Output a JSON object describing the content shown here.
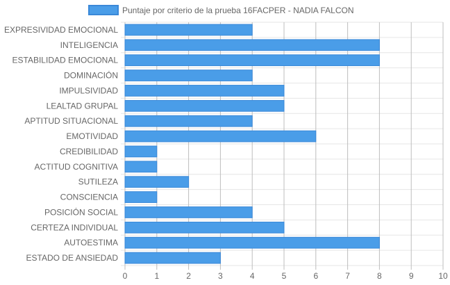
{
  "chart_data": {
    "type": "bar",
    "orientation": "horizontal",
    "title": "",
    "xlabel": "",
    "ylabel": "",
    "legend": {
      "position": "top",
      "entries": [
        "Puntaje por criterio de la prueba 16FACPER - NADIA FALCON"
      ]
    },
    "series": [
      {
        "name": "Puntaje por criterio de la prueba 16FACPER - NADIA FALCON",
        "values": [
          4,
          8,
          8,
          4,
          5,
          5,
          4,
          6,
          1,
          1,
          2,
          1,
          4,
          5,
          8,
          3
        ]
      }
    ],
    "categories": [
      "EXPRESIVIDAD EMOCIONAL",
      "INTELIGENCIA",
      "ESTABILIDAD EMOCIONAL",
      "DOMINACIÓN",
      "IMPULSIVIDAD",
      "LEALTAD GRUPAL",
      "APTITUD SITUACIONAL",
      "EMOTIVIDAD",
      "CREDIBILIDAD",
      "ACTITUD COGNITIVA",
      "SUTILEZA",
      "CONSCIENCIA",
      "POSICIÓN SOCIAL",
      "CERTEZA INDIVIDUAL",
      "AUTOESTIMA",
      "ESTADO DE ANSIEDAD"
    ],
    "xlim": [
      0,
      10
    ],
    "x_ticks": [
      "0",
      "1",
      "2",
      "3",
      "4",
      "5",
      "6",
      "7",
      "8",
      "9",
      "10"
    ],
    "grid": true,
    "colors": {
      "bar_fill": "#4a9de8",
      "bar_border": "#3a88d8"
    }
  }
}
